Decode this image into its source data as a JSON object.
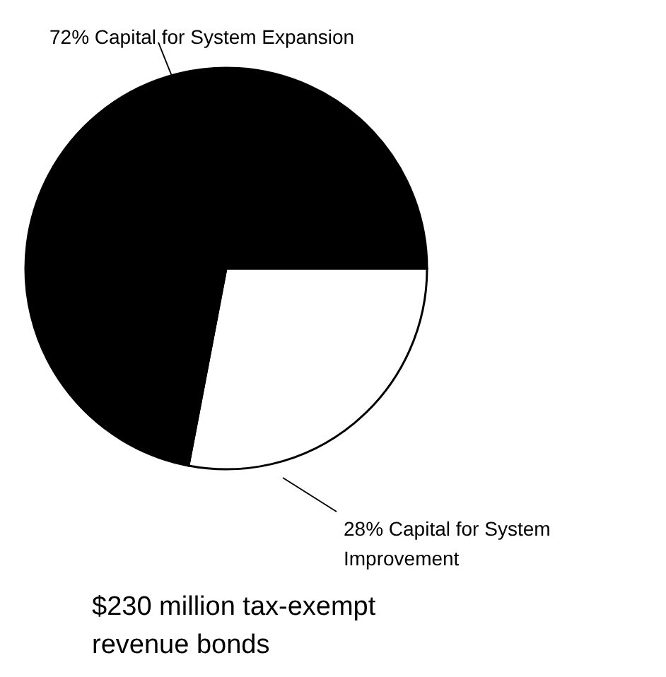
{
  "chart_data": {
    "type": "pie",
    "categories": [
      "Capital for System Improvement",
      "Capital for System Expansion"
    ],
    "values": [
      28,
      72
    ],
    "value_labels": [
      "28%",
      "72%"
    ],
    "colors": [
      "#ffffff",
      "#000000"
    ],
    "legend": false,
    "annotations": [
      "$230 million tax-exempt revenue bonds"
    ]
  }
}
